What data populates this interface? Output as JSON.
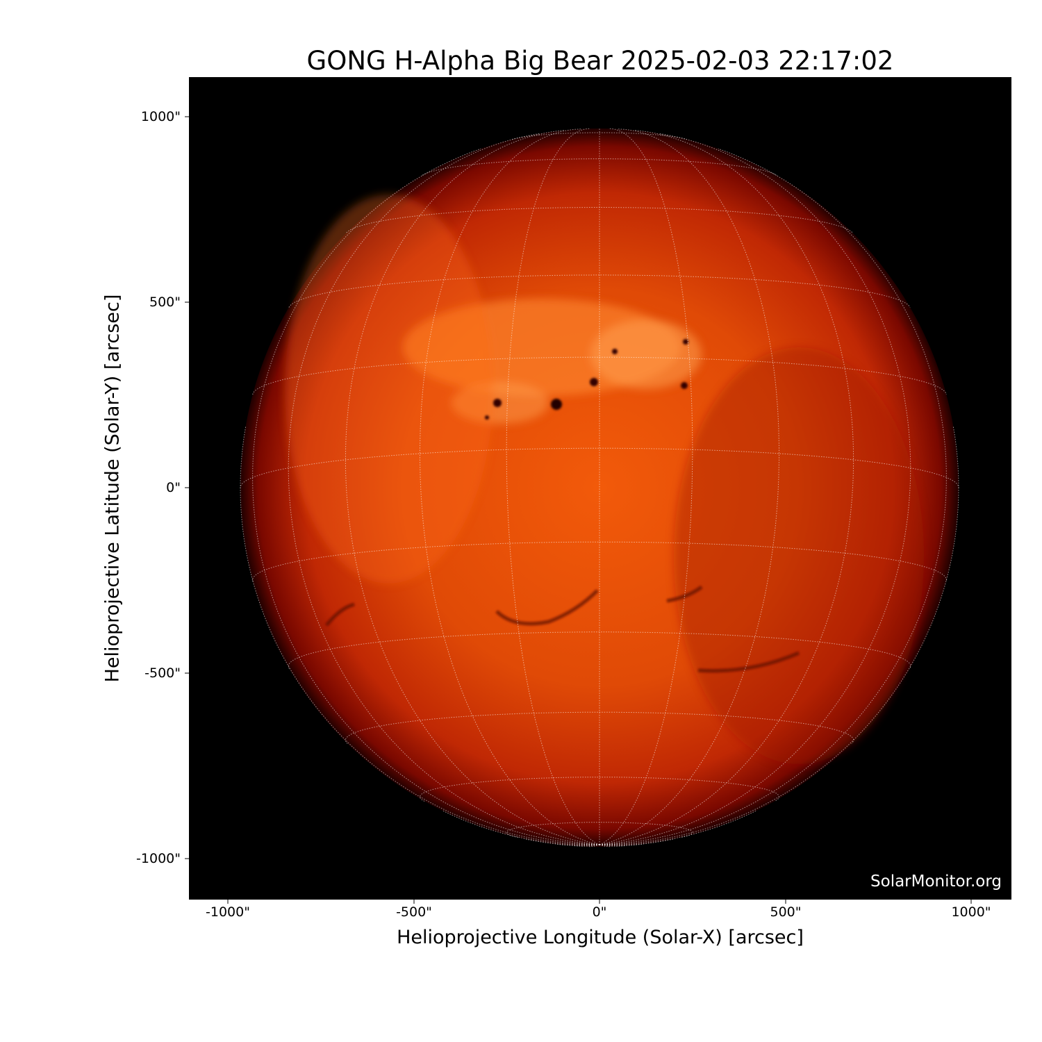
{
  "title": "GONG H-Alpha Big Bear 2025-02-03 22:17:02",
  "x_axis": {
    "label": "Helioprojective Longitude (Solar-X) [arcsec]",
    "ticks": [
      "-1000\"",
      "-500\"",
      "0\"",
      "500\"",
      "1000\""
    ],
    "tick_values": [
      -1000,
      -500,
      0,
      500,
      1000
    ],
    "range": [
      -1105,
      1105
    ]
  },
  "y_axis": {
    "label": "Helioprojective Latitude (Solar-Y) [arcsec]",
    "ticks": [
      "1000\"",
      "500\"",
      "0\"",
      "-500\"",
      "-1000\""
    ],
    "tick_values": [
      1000,
      500,
      0,
      -500,
      -1000
    ],
    "range": [
      -1105,
      1105
    ]
  },
  "watermark": "SolarMonitor.org",
  "colors": {
    "background": "#000000",
    "disk_center": "#ff6a10",
    "disk_limb": "#7a0800",
    "grid": "#ffffff"
  },
  "grid": {
    "type": "heliographic",
    "spacing_deg": 15
  }
}
